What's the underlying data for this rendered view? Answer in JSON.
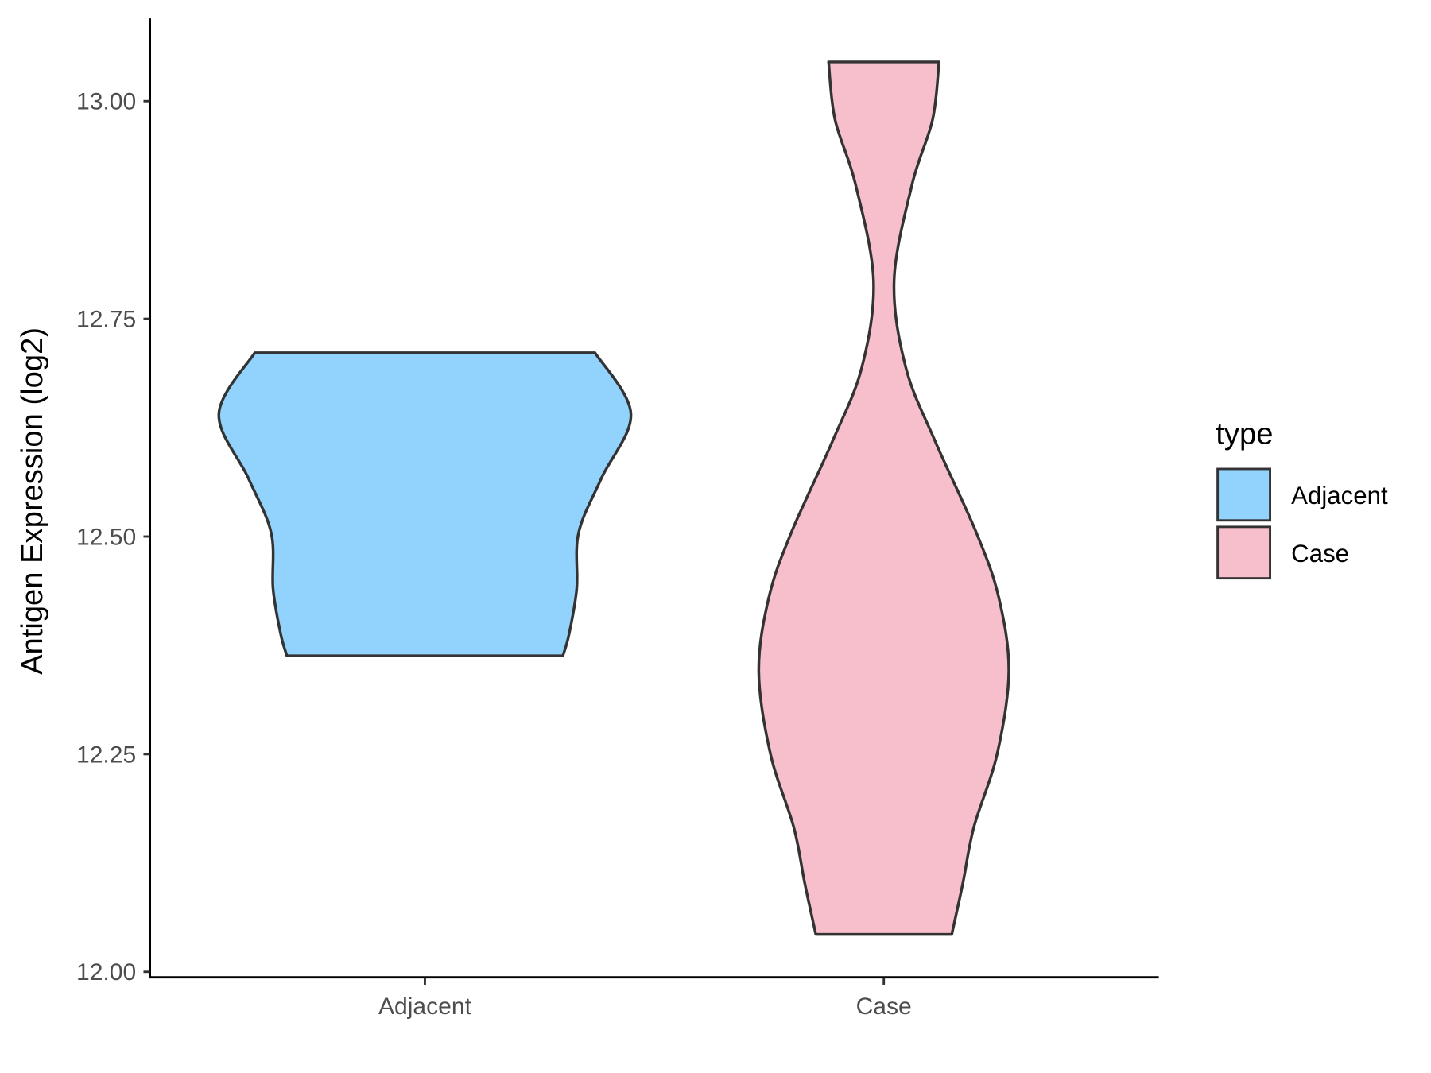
{
  "chart_data": {
    "type": "violin",
    "title": "",
    "xlabel": "",
    "ylabel": "Antigen Expression (log2)",
    "ylim": [
      11.99,
      13.09
    ],
    "yticks": [
      "12.00",
      "12.25",
      "12.50",
      "12.75",
      "13.00"
    ],
    "ytick_values": [
      12.0,
      12.25,
      12.5,
      12.75,
      13.0
    ],
    "categories": [
      "Adjacent",
      "Case"
    ],
    "grid": false,
    "legend": {
      "title": "type",
      "position": "right",
      "entries": [
        "Adjacent",
        "Case"
      ]
    },
    "colors": {
      "Adjacent": "#92D3FD",
      "Case": "#F7BFCB",
      "outline": "#333333"
    },
    "series": [
      {
        "name": "Adjacent",
        "range": [
          12.363,
          12.711
        ],
        "profile": [
          [
            12.711,
            0.826
          ],
          [
            12.641,
            1.0
          ],
          [
            12.567,
            0.857
          ],
          [
            12.504,
            0.746
          ],
          [
            12.44,
            0.737
          ],
          [
            12.388,
            0.7
          ],
          [
            12.363,
            0.67
          ]
        ]
      },
      {
        "name": "Case",
        "range": [
          12.043,
          13.045
        ],
        "profile": [
          [
            13.045,
            0.268
          ],
          [
            12.979,
            0.237
          ],
          [
            12.905,
            0.138
          ],
          [
            12.794,
            0.05
          ],
          [
            12.694,
            0.107
          ],
          [
            12.609,
            0.25
          ],
          [
            12.504,
            0.45
          ],
          [
            12.43,
            0.558
          ],
          [
            12.345,
            0.607
          ],
          [
            12.25,
            0.55
          ],
          [
            12.166,
            0.437
          ],
          [
            12.102,
            0.384
          ],
          [
            12.043,
            0.33
          ]
        ]
      }
    ]
  }
}
